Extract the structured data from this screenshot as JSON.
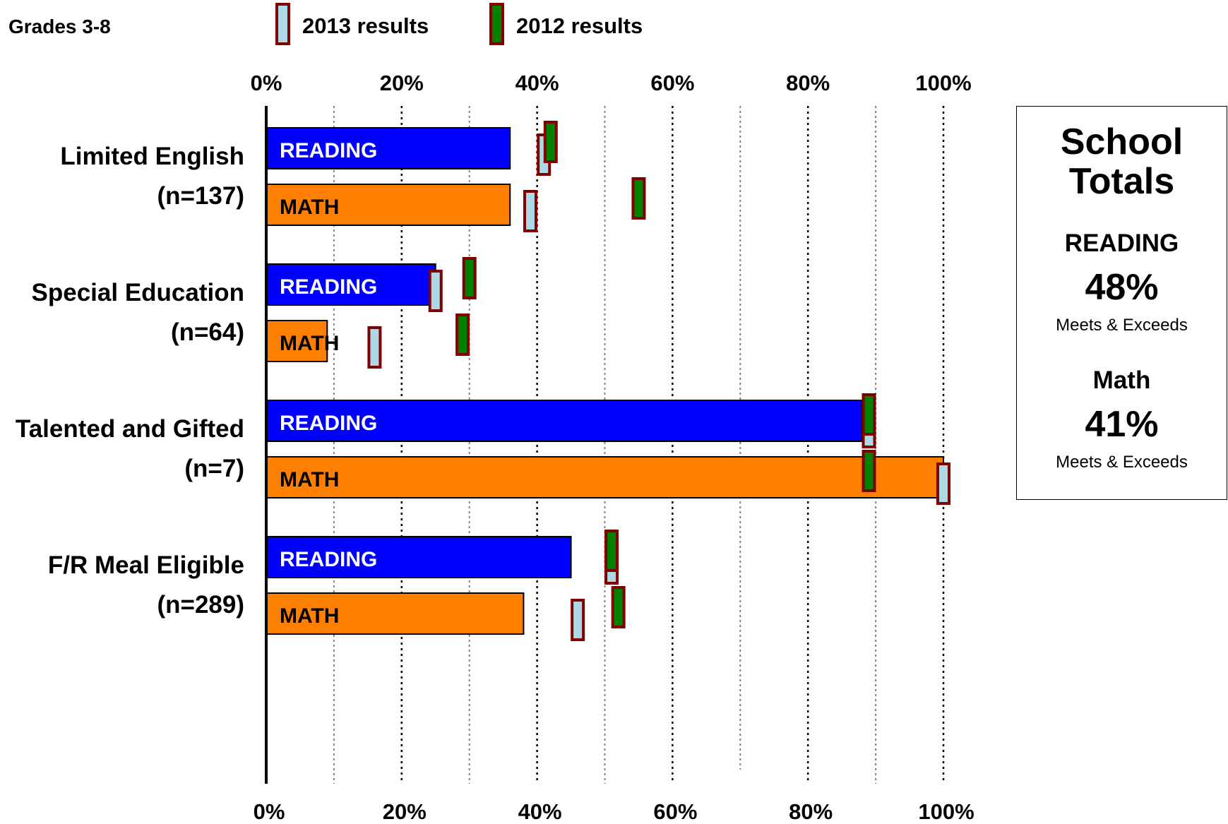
{
  "chart_data": {
    "type": "bar",
    "orientation": "horizontal",
    "subtitle": "Grades 3-8",
    "legend": [
      {
        "name": "2013 results",
        "fill": "#add8e6",
        "stroke": "#800000"
      },
      {
        "name": "2012 results",
        "fill": "#008000",
        "stroke": "#800000"
      }
    ],
    "xlim": [
      0,
      100
    ],
    "x_ticks": [
      "0%",
      "20%",
      "40%",
      "60%",
      "80%",
      "100%"
    ],
    "x_tick_values": [
      0,
      20,
      40,
      60,
      80,
      100
    ],
    "gridlines": [
      10,
      20,
      30,
      40,
      50,
      60,
      70,
      80,
      90,
      100
    ],
    "groups": [
      {
        "label": "Limited English",
        "n": "(n=137)",
        "bars": [
          {
            "label": "READING",
            "value": 36,
            "marker_2013": 41,
            "marker_2012": 42
          },
          {
            "label": "MATH",
            "value": 36,
            "marker_2013": 39,
            "marker_2012": 55
          }
        ]
      },
      {
        "label": "Special Education",
        "n": "(n=64)",
        "bars": [
          {
            "label": "READING",
            "value": 25,
            "marker_2013": 25,
            "marker_2012": 30
          },
          {
            "label": "MATH",
            "value": 9,
            "marker_2013": 16,
            "marker_2012": 29
          }
        ]
      },
      {
        "label": "Talented and Gifted",
        "n": "(n=7)",
        "bars": [
          {
            "label": "READING",
            "value": 88,
            "marker_2013": 89,
            "marker_2012": 89
          },
          {
            "label": "MATH",
            "value": 100,
            "marker_2013": 100,
            "marker_2012": 89
          }
        ]
      },
      {
        "label": "F/R Meal Eligible",
        "n": "(n=289)",
        "bars": [
          {
            "label": "READING",
            "value": 45,
            "marker_2013": 51,
            "marker_2012": 51
          },
          {
            "label": "MATH",
            "value": 38,
            "marker_2013": 46,
            "marker_2012": 52
          }
        ]
      }
    ],
    "bar_colors": {
      "READING": "#0000ff",
      "MATH": "#ff8000"
    },
    "bar_label_colors": {
      "READING": "#ffffff",
      "MATH": "#000000"
    }
  },
  "totals": {
    "title_line1": "School",
    "title_line2": "Totals",
    "reading_label": "READING",
    "reading_value": "48%",
    "reading_note": "Meets & Exceeds",
    "math_label": "Math",
    "math_value": "41%",
    "math_note": "Meets & Exceeds"
  }
}
